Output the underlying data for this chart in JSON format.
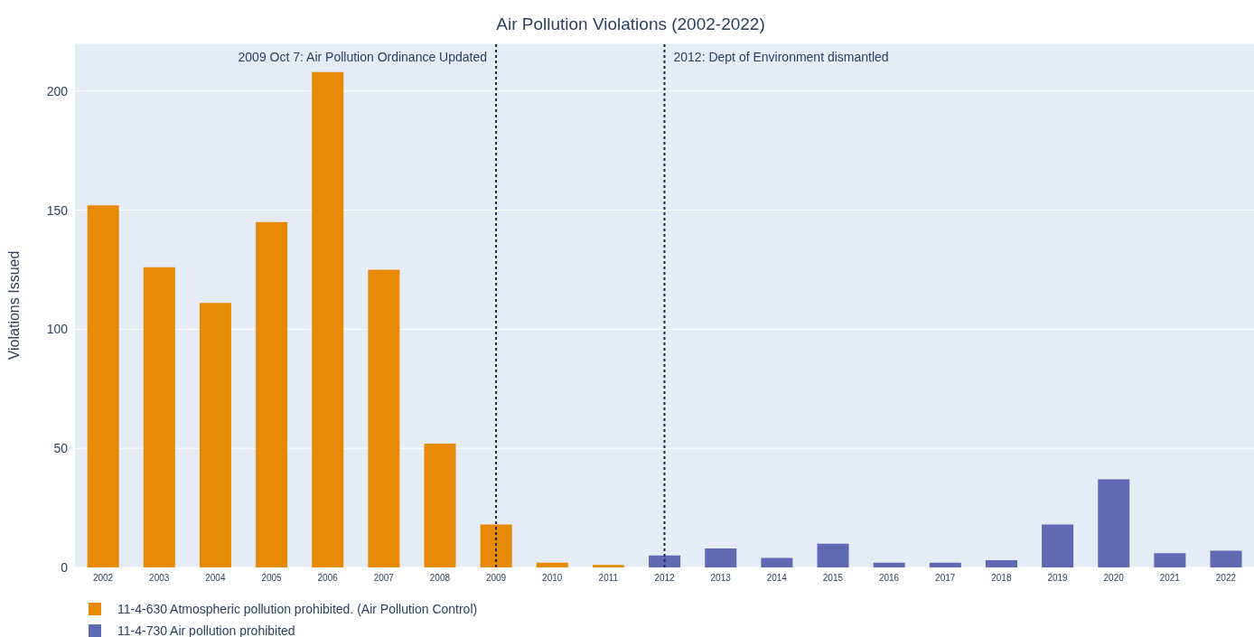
{
  "chart_data": {
    "type": "bar",
    "title": "Air Pollution Violations (2002-2022)",
    "ylabel": "Violations Issued",
    "categories": [
      "2002",
      "2003",
      "2004",
      "2005",
      "2006",
      "2007",
      "2008",
      "2009",
      "2010",
      "2011",
      "2012",
      "2013",
      "2014",
      "2015",
      "2016",
      "2017",
      "2018",
      "2019",
      "2020",
      "2021",
      "2022"
    ],
    "stacked": true,
    "series": [
      {
        "name": "11-4-630 Atmospheric pollution prohibited. (Air Pollution Control)",
        "color": "#e68a06",
        "values": [
          152,
          126,
          111,
          145,
          208,
          125,
          52,
          18,
          2,
          1,
          null,
          null,
          null,
          null,
          null,
          null,
          null,
          null,
          null,
          null,
          null
        ]
      },
      {
        "name": "11-4-730 Air pollution prohibited",
        "color": "#5f6ab3",
        "values": [
          null,
          null,
          null,
          null,
          null,
          null,
          null,
          null,
          null,
          null,
          5,
          8,
          4,
          10,
          2,
          2,
          3,
          18,
          37,
          6,
          7
        ]
      }
    ],
    "ylim": [
      0,
      220
    ],
    "yticks": [
      0,
      50,
      100,
      150,
      200
    ],
    "grid": "y",
    "legend": "bottom left",
    "ref_lines": [
      {
        "axis": "x",
        "value": "2009",
        "label": "2009 Oct 7: Air Pollution Ordinance Updated",
        "color": "#1f2a4f",
        "line_style": "dotted"
      },
      {
        "axis": "x",
        "value": "2012",
        "label": "2012: Dept of Environment dismantled",
        "color": "#1f2a4f",
        "line_style": "dotted"
      }
    ]
  }
}
